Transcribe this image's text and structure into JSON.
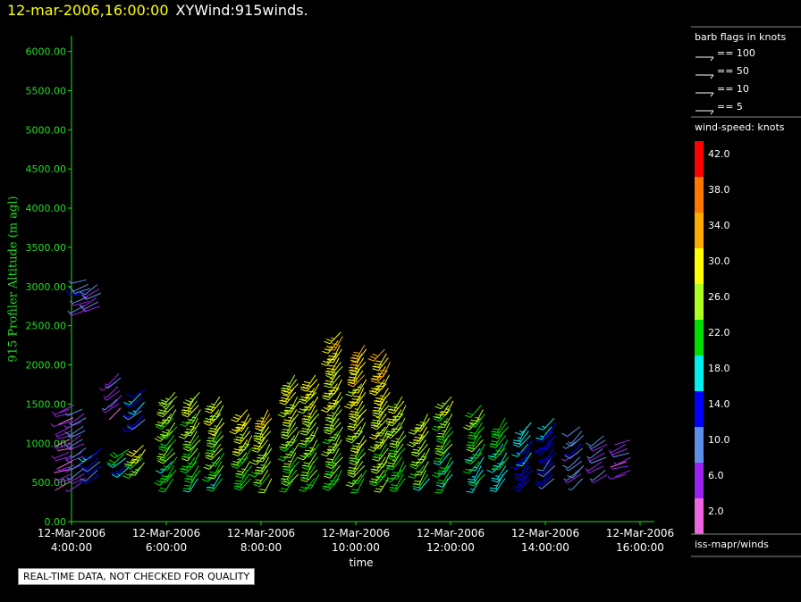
{
  "title": {
    "datetime": "12-mar-2006,16:00:00",
    "name": "XYWind:915winds."
  },
  "qc_note": "REAL-TIME DATA, NOT CHECKED FOR QUALITY",
  "legend": {
    "barb_title": "barb flags in knots",
    "barb_entries": [
      "== 100",
      "== 50",
      "== 10",
      "== 5"
    ],
    "speed_title": "wind-speed: knots",
    "speed_scale": [
      {
        "label": "42.0",
        "color": "#ff0000"
      },
      {
        "label": "38.0",
        "color": "#ff7700"
      },
      {
        "label": "34.0",
        "color": "#ffaa00"
      },
      {
        "label": "30.0",
        "color": "#ffff00"
      },
      {
        "label": "26.0",
        "color": "#aaff22"
      },
      {
        "label": "22.0",
        "color": "#00dd00"
      },
      {
        "label": "18.0",
        "color": "#00eeee"
      },
      {
        "label": "14.0",
        "color": "#0000ff"
      },
      {
        "label": "10.0",
        "color": "#5b8fe8"
      },
      {
        "label": "6.0",
        "color": "#9922ee"
      },
      {
        "label": "2.0",
        "color": "#ee66dd"
      }
    ],
    "source": "iss-mapr/winds"
  },
  "chart_data": {
    "type": "scatter",
    "title": "XYWind:915winds.",
    "xlabel": "time",
    "ylabel": "915 Profiler Altitude (m agl)",
    "ylim": [
      0,
      6200
    ],
    "y_ticks": [
      "0.00",
      "500.00",
      "1000.00",
      "1500.00",
      "2000.00",
      "2500.00",
      "3000.00",
      "3500.00",
      "4000.00",
      "4500.00",
      "5000.00",
      "5500.00",
      "6000.00"
    ],
    "x_ticks": [
      {
        "date": "12-Mar-2006",
        "time": "4:00:00"
      },
      {
        "date": "12-Mar-2006",
        "time": "6:00:00"
      },
      {
        "date": "12-Mar-2006",
        "time": "8:00:00"
      },
      {
        "date": "12-Mar-2006",
        "time": "10:00:00"
      },
      {
        "date": "12-Mar-2006",
        "time": "12:00:00"
      },
      {
        "date": "12-Mar-2006",
        "time": "14:00:00"
      },
      {
        "date": "12-Mar-2006",
        "time": "16:00:00"
      }
    ],
    "grid": false,
    "legend_placement": "right",
    "profiles": [
      {
        "time": "04:00",
        "bottom": 500,
        "top": 1500,
        "speed": 5,
        "dir": 250
      },
      {
        "time": "04:15",
        "bottom": 500,
        "top": 1450,
        "speed": 8,
        "dir": 240
      },
      {
        "time": "04:20",
        "bottom": 2700,
        "top": 3100,
        "speed": 10,
        "dir": 250
      },
      {
        "time": "04:35",
        "bottom": 600,
        "top": 950,
        "speed": 14,
        "dir": 230
      },
      {
        "time": "04:35",
        "bottom": 2750,
        "top": 3050,
        "speed": 9,
        "dir": 240
      },
      {
        "time": "05:00",
        "bottom": 1450,
        "top": 1900,
        "speed": 7,
        "dir": 230
      },
      {
        "time": "05:10",
        "bottom": 700,
        "top": 950,
        "speed": 19,
        "dir": 230
      },
      {
        "time": "05:30",
        "bottom": 700,
        "top": 1000,
        "speed": 27,
        "dir": 220
      },
      {
        "time": "05:30",
        "bottom": 1250,
        "top": 1700,
        "speed": 14,
        "dir": 230
      },
      {
        "time": "06:10",
        "bottom": 550,
        "top": 1700,
        "speed": 24,
        "dir": 220
      },
      {
        "time": "06:40",
        "bottom": 550,
        "top": 1650,
        "speed": 24,
        "dir": 215
      },
      {
        "time": "07:10",
        "bottom": 550,
        "top": 1600,
        "speed": 25,
        "dir": 215
      },
      {
        "time": "07:45",
        "bottom": 550,
        "top": 1450,
        "speed": 26,
        "dir": 215
      },
      {
        "time": "08:10",
        "bottom": 550,
        "top": 1450,
        "speed": 27,
        "dir": 215
      },
      {
        "time": "08:45",
        "bottom": 550,
        "top": 1900,
        "speed": 26,
        "dir": 215
      },
      {
        "time": "09:10",
        "bottom": 550,
        "top": 1900,
        "speed": 26,
        "dir": 215
      },
      {
        "time": "09:40",
        "bottom": 550,
        "top": 2450,
        "speed": 27,
        "dir": 215
      },
      {
        "time": "10:10",
        "bottom": 550,
        "top": 2300,
        "speed": 28,
        "dir": 215
      },
      {
        "time": "10:40",
        "bottom": 550,
        "top": 2250,
        "speed": 28,
        "dir": 215
      },
      {
        "time": "11:00",
        "bottom": 550,
        "top": 1600,
        "speed": 25,
        "dir": 215
      },
      {
        "time": "11:30",
        "bottom": 550,
        "top": 1400,
        "speed": 25,
        "dir": 215
      },
      {
        "time": "12:00",
        "bottom": 550,
        "top": 1600,
        "speed": 23,
        "dir": 215
      },
      {
        "time": "12:40",
        "bottom": 550,
        "top": 1500,
        "speed": 22,
        "dir": 215
      },
      {
        "time": "13:10",
        "bottom": 550,
        "top": 1350,
        "speed": 20,
        "dir": 215
      },
      {
        "time": "13:40",
        "bottom": 550,
        "top": 1300,
        "speed": 16,
        "dir": 215
      },
      {
        "time": "14:10",
        "bottom": 550,
        "top": 1350,
        "speed": 14,
        "dir": 220
      },
      {
        "time": "14:45",
        "bottom": 550,
        "top": 1250,
        "speed": 10,
        "dir": 230
      },
      {
        "time": "15:15",
        "bottom": 600,
        "top": 1100,
        "speed": 8,
        "dir": 240
      },
      {
        "time": "15:45",
        "bottom": 600,
        "top": 1050,
        "speed": 6,
        "dir": 250
      }
    ]
  }
}
